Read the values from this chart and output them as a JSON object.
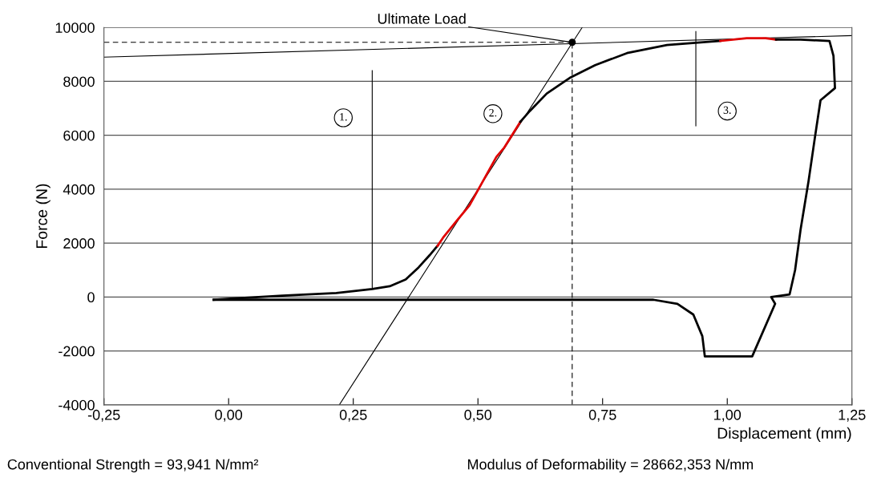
{
  "chart_data": {
    "type": "line",
    "xlabel": "Displacement (mm)",
    "ylabel": "Force (N)",
    "xlim": [
      -0.25,
      1.25
    ],
    "xticks": [
      {
        "value": -0.25,
        "label": "-0,25"
      },
      {
        "value": 0,
        "label": "0,00"
      },
      {
        "value": 0.25,
        "label": "0,25"
      },
      {
        "value": 0.5,
        "label": "0,50"
      },
      {
        "value": 0.75,
        "label": "0,75"
      },
      {
        "value": 1,
        "label": "1,00"
      },
      {
        "value": 1.25,
        "label": "1,25"
      }
    ],
    "ylim": [
      -4000,
      10000
    ],
    "yticks": [
      -4000,
      -2000,
      0,
      2000,
      4000,
      6000,
      8000,
      10000
    ],
    "grid": "y",
    "series": [
      {
        "color": "#000000",
        "x": [
          -0.03,
          0.108,
          0.216,
          0.288,
          0.323,
          0.355,
          0.381,
          0.403,
          0.419
        ],
        "values": [
          -100,
          50,
          150,
          300,
          400,
          650,
          1100,
          1550,
          1900
        ]
      },
      {
        "color": "#e00000",
        "x": [
          0.419,
          0.43,
          0.456,
          0.483,
          0.504,
          0.537,
          0.553,
          0.585
        ],
        "values": [
          1900,
          2200,
          2800,
          3400,
          4100,
          5200,
          5550,
          6500
        ]
      },
      {
        "color": "#000000",
        "x": [
          0.585,
          0.604,
          0.638,
          0.686,
          0.735,
          0.799,
          0.879,
          0.986
        ],
        "values": [
          6500,
          6900,
          7550,
          8150,
          8600,
          9050,
          9350,
          9500
        ]
      },
      {
        "color": "#e00000",
        "x": [
          0.986,
          1.039,
          1.077,
          1.098
        ],
        "values": [
          9500,
          9600,
          9600,
          9550
        ]
      },
      {
        "color": "#000000",
        "x": [
          1.098,
          1.147,
          1.205,
          1.213,
          1.216,
          1.187,
          1.176,
          1.163,
          1.147,
          1.136,
          1.125,
          1.088,
          1.096,
          1.05,
          0.955,
          0.95,
          0.932,
          0.9,
          0.852,
          0.5,
          0.0,
          -0.03
        ],
        "values": [
          9550,
          9550,
          9500,
          8950,
          7750,
          7300,
          5950,
          4300,
          2500,
          1000,
          100,
          0,
          -250,
          -2200,
          -2200,
          -1450,
          -650,
          -250,
          -100,
          -100,
          -100,
          -100
        ]
      },
      {
        "color": "#000000",
        "line_style": "solid",
        "x": [
          0.222,
          0.709
        ],
        "values": [
          -4000,
          10000
        ]
      },
      {
        "color": "#000000",
        "line_style": "solid",
        "x": [
          -0.25,
          1.25
        ],
        "values": [
          8900,
          9700
        ]
      },
      {
        "color": "#000000",
        "line_style": "dashed",
        "x": [
          -0.25,
          0.689
        ],
        "values": [
          9450,
          9450
        ]
      },
      {
        "color": "#000000",
        "line_style": "dashed",
        "x": [
          0.689,
          0.689
        ],
        "values": [
          -4000,
          9450
        ]
      },
      {
        "color": "#000000",
        "line_style": "solid",
        "x": [
          0.288,
          0.288
        ],
        "values": [
          300,
          8400
        ]
      },
      {
        "color": "#000000",
        "line_style": "solid",
        "x": [
          0.937,
          0.937
        ],
        "values": [
          6350,
          9850
        ]
      },
      {
        "type": "scatter",
        "marker": "circle",
        "color": "#000000",
        "x": [
          0.689
        ],
        "values": [
          9450
        ]
      }
    ],
    "annotations": [
      {
        "text": "Ultimate Load",
        "x": 0.689,
        "y": 9450
      },
      {
        "text": "1.",
        "x": 0.23,
        "y": 6650
      },
      {
        "text": "2.",
        "x": 0.53,
        "y": 6800
      },
      {
        "text": "3.",
        "x": 1.0,
        "y": 6900
      },
      "Conventional Strength = 93,941 N/mm²",
      "Modulus of Deformability = 28662,353 N/mm"
    ]
  }
}
